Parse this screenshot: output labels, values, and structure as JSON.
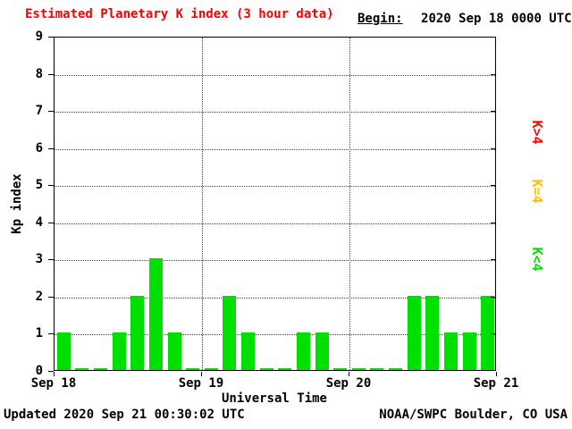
{
  "header": {
    "begin_label": "Begin:",
    "begin_value": "2020 Sep 18 0000 UTC"
  },
  "footer": {
    "updated": "Updated 2020 Sep 21 00:30:02 UTC",
    "source": "NOAA/SWPC Boulder, CO USA"
  },
  "legend": [
    {
      "label": "K>4",
      "color": "#ff0000"
    },
    {
      "label": "K=4",
      "color": "#ffc000"
    },
    {
      "label": "K<4",
      "color": "#00e000"
    }
  ],
  "chart_data": {
    "type": "bar",
    "title": "Estimated Planetary K index (3 hour data)",
    "title_color": "#ff0000",
    "xlabel": "Universal Time",
    "ylabel": "Kp index",
    "ylim": [
      0,
      9
    ],
    "yticks": [
      0,
      1,
      2,
      3,
      4,
      5,
      6,
      7,
      8,
      9
    ],
    "x_day_labels": [
      "Sep 18",
      "Sep 19",
      "Sep 20",
      "Sep 21"
    ],
    "hours_per_bar": 3,
    "bar_color": "#00e000",
    "grid": "dotted",
    "values": [
      1,
      0,
      0,
      1,
      2,
      3,
      1,
      0,
      0,
      2,
      1,
      0,
      0,
      1,
      1,
      0,
      0,
      0,
      0,
      2,
      2,
      1,
      1,
      2
    ]
  }
}
